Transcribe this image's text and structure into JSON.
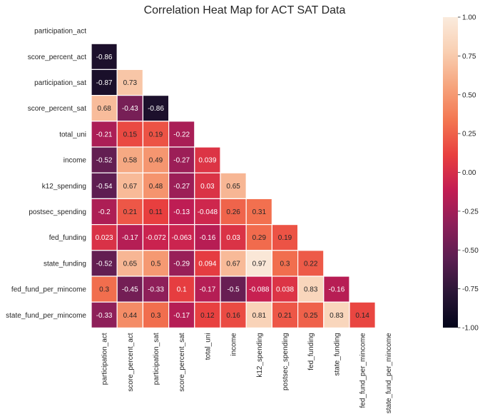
{
  "chart_data": {
    "type": "heatmap",
    "title": "Correlation Heat Map for ACT SAT Data",
    "variables": [
      "participation_act",
      "score_percent_act",
      "participation_sat",
      "score_percent_sat",
      "total_uni",
      "income",
      "k12_spending",
      "postsec_spending",
      "fed_funding",
      "state_funding",
      "fed_fund_per_mincome",
      "state_fund_per_mincome"
    ],
    "mask": "upper-triangle including diagonal",
    "matrix": [
      [
        null,
        null,
        null,
        null,
        null,
        null,
        null,
        null,
        null,
        null,
        null,
        null
      ],
      [
        -0.86,
        null,
        null,
        null,
        null,
        null,
        null,
        null,
        null,
        null,
        null,
        null
      ],
      [
        -0.87,
        0.73,
        null,
        null,
        null,
        null,
        null,
        null,
        null,
        null,
        null,
        null
      ],
      [
        0.68,
        -0.43,
        -0.86,
        null,
        null,
        null,
        null,
        null,
        null,
        null,
        null,
        null
      ],
      [
        -0.21,
        0.15,
        0.19,
        -0.22,
        null,
        null,
        null,
        null,
        null,
        null,
        null,
        null
      ],
      [
        -0.52,
        0.58,
        0.49,
        -0.27,
        0.039,
        null,
        null,
        null,
        null,
        null,
        null,
        null
      ],
      [
        -0.54,
        0.67,
        0.48,
        -0.27,
        0.03,
        0.65,
        null,
        null,
        null,
        null,
        null,
        null
      ],
      [
        -0.2,
        0.21,
        0.11,
        -0.13,
        -0.048,
        0.26,
        0.31,
        null,
        null,
        null,
        null,
        null
      ],
      [
        0.023,
        -0.17,
        -0.072,
        -0.063,
        -0.16,
        0.03,
        0.29,
        0.19,
        null,
        null,
        null,
        null
      ],
      [
        -0.52,
        0.65,
        0.5,
        -0.29,
        0.094,
        0.67,
        0.97,
        0.3,
        0.22,
        null,
        null,
        null
      ],
      [
        0.3,
        -0.45,
        -0.33,
        0.1,
        -0.17,
        -0.5,
        -0.088,
        0.038,
        0.83,
        -0.16,
        null,
        null
      ],
      [
        -0.33,
        0.44,
        0.3,
        -0.17,
        0.12,
        0.16,
        0.81,
        0.21,
        0.25,
        0.83,
        0.14,
        null
      ]
    ],
    "colorbar": {
      "vmin": -1.0,
      "vmax": 1.0,
      "ticks": [
        "1.00",
        "0.75",
        "0.50",
        "0.25",
        "0.00",
        "-0.25",
        "-0.50",
        "-0.75",
        "-1.00"
      ],
      "tick_values": [
        1.0,
        0.75,
        0.5,
        0.25,
        0.0,
        -0.25,
        -0.5,
        -0.75,
        -1.0
      ],
      "colormap": "rocket",
      "colors": [
        "#03051a",
        "#2a1636",
        "#5b1e51",
        "#8d1f59",
        "#c31d53",
        "#e83f3f",
        "#f37651",
        "#f6a47d",
        "#f9cfb2",
        "#faebdd"
      ]
    }
  }
}
